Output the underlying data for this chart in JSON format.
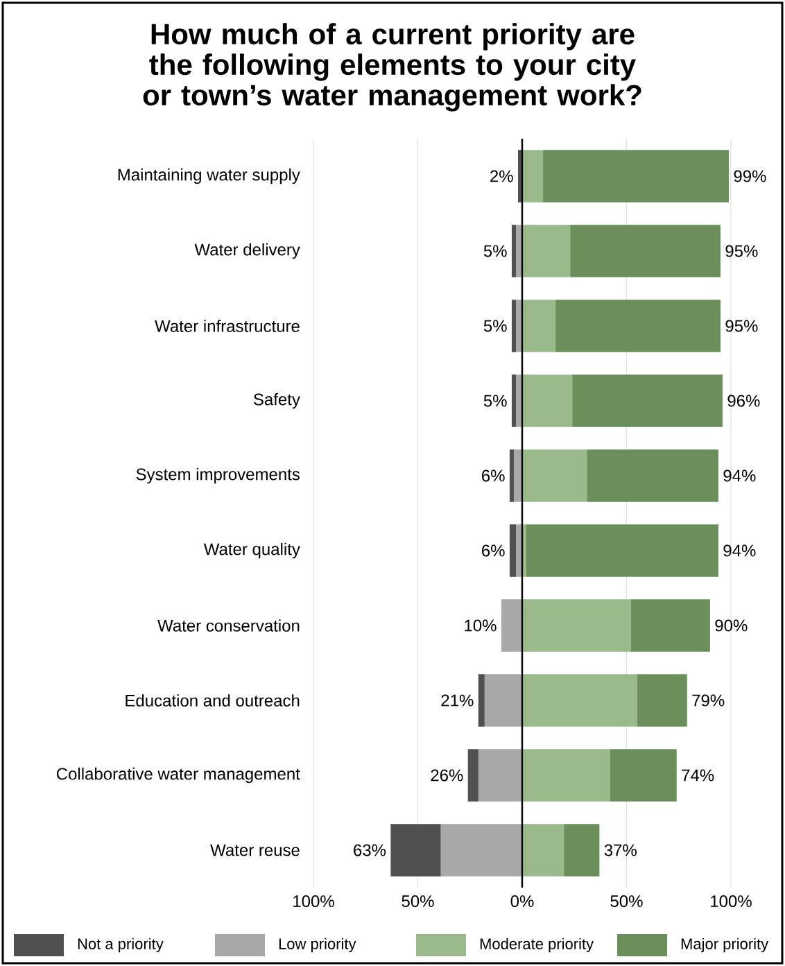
{
  "chart_data": {
    "type": "bar",
    "orientation": "horizontal",
    "stacked": true,
    "title": "How much of a current priority are the following elements to your city or town’s water management work?",
    "categories": [
      "Maintaining water supply",
      "Water delivery",
      "Water infrastructure",
      "Safety",
      "System improvements",
      "Water quality",
      "Water conservation",
      "Education and outreach",
      "Collaborative water management",
      "Water reuse"
    ],
    "series": [
      {
        "name": "Not a priority",
        "color": "#505050",
        "values": [
          -2,
          -2,
          -2,
          -2,
          -2,
          -3,
          null,
          -3,
          -5,
          -24
        ]
      },
      {
        "name": "Low priority",
        "color": "#a8a8a8",
        "values": [
          null,
          -3,
          -3,
          -3,
          -4,
          -3,
          -10,
          -18,
          -21,
          -39
        ]
      },
      {
        "name": "Moderate priority",
        "color": "#9aba8c",
        "values": [
          10,
          23,
          16,
          24,
          31,
          2,
          52,
          55,
          42,
          20
        ]
      },
      {
        "name": "Major priority",
        "color": "#6a8f5a",
        "values": [
          89,
          72,
          79,
          72,
          63,
          92,
          38,
          24,
          32,
          17
        ]
      }
    ],
    "xlim": [
      -100,
      100
    ],
    "xticks": [
      {
        "value": -100,
        "label": "100%"
      },
      {
        "value": -50,
        "label": "50%"
      },
      {
        "value": 0,
        "label": "0%"
      },
      {
        "value": 50,
        "label": "50%"
      },
      {
        "value": 100,
        "label": "100%"
      }
    ],
    "grid": "x",
    "legend": "bottom",
    "ref_lines": [
      {
        "axis": "x",
        "value": 0,
        "color": "#000000"
      }
    ],
    "annotations": [
      {
        "text": "2%",
        "x": -2,
        "y": "Maintaining water supply"
      },
      {
        "text": "99%",
        "x": 99,
        "y": "Maintaining water supply"
      },
      {
        "text": "5%",
        "x": -5,
        "y": "Water delivery"
      },
      {
        "text": "95%",
        "x": 95,
        "y": "Water delivery"
      },
      {
        "text": "5%",
        "x": -5,
        "y": "Water infrastructure"
      },
      {
        "text": "95%",
        "x": 95,
        "y": "Water infrastructure"
      },
      {
        "text": "5%",
        "x": -5,
        "y": "Safety"
      },
      {
        "text": "96%",
        "x": 96,
        "y": "Safety"
      },
      {
        "text": "6%",
        "x": -6,
        "y": "System improvements"
      },
      {
        "text": "94%",
        "x": 94,
        "y": "System improvements"
      },
      {
        "text": "6%",
        "x": -6,
        "y": "Water quality"
      },
      {
        "text": "94%",
        "x": 94,
        "y": "Water quality"
      },
      {
        "text": "10%",
        "x": -10,
        "y": "Water conservation"
      },
      {
        "text": "90%",
        "x": 90,
        "y": "Water conservation"
      },
      {
        "text": "21%",
        "x": -21,
        "y": "Education and outreach"
      },
      {
        "text": "79%",
        "x": 79,
        "y": "Education and outreach"
      },
      {
        "text": "26%",
        "x": -26,
        "y": "Collaborative water management"
      },
      {
        "text": "74%",
        "x": 74,
        "y": "Collaborative water management"
      },
      {
        "text": "63%",
        "x": -63,
        "y": "Water reuse"
      },
      {
        "text": "37%",
        "x": 37,
        "y": "Water reuse"
      }
    ]
  }
}
